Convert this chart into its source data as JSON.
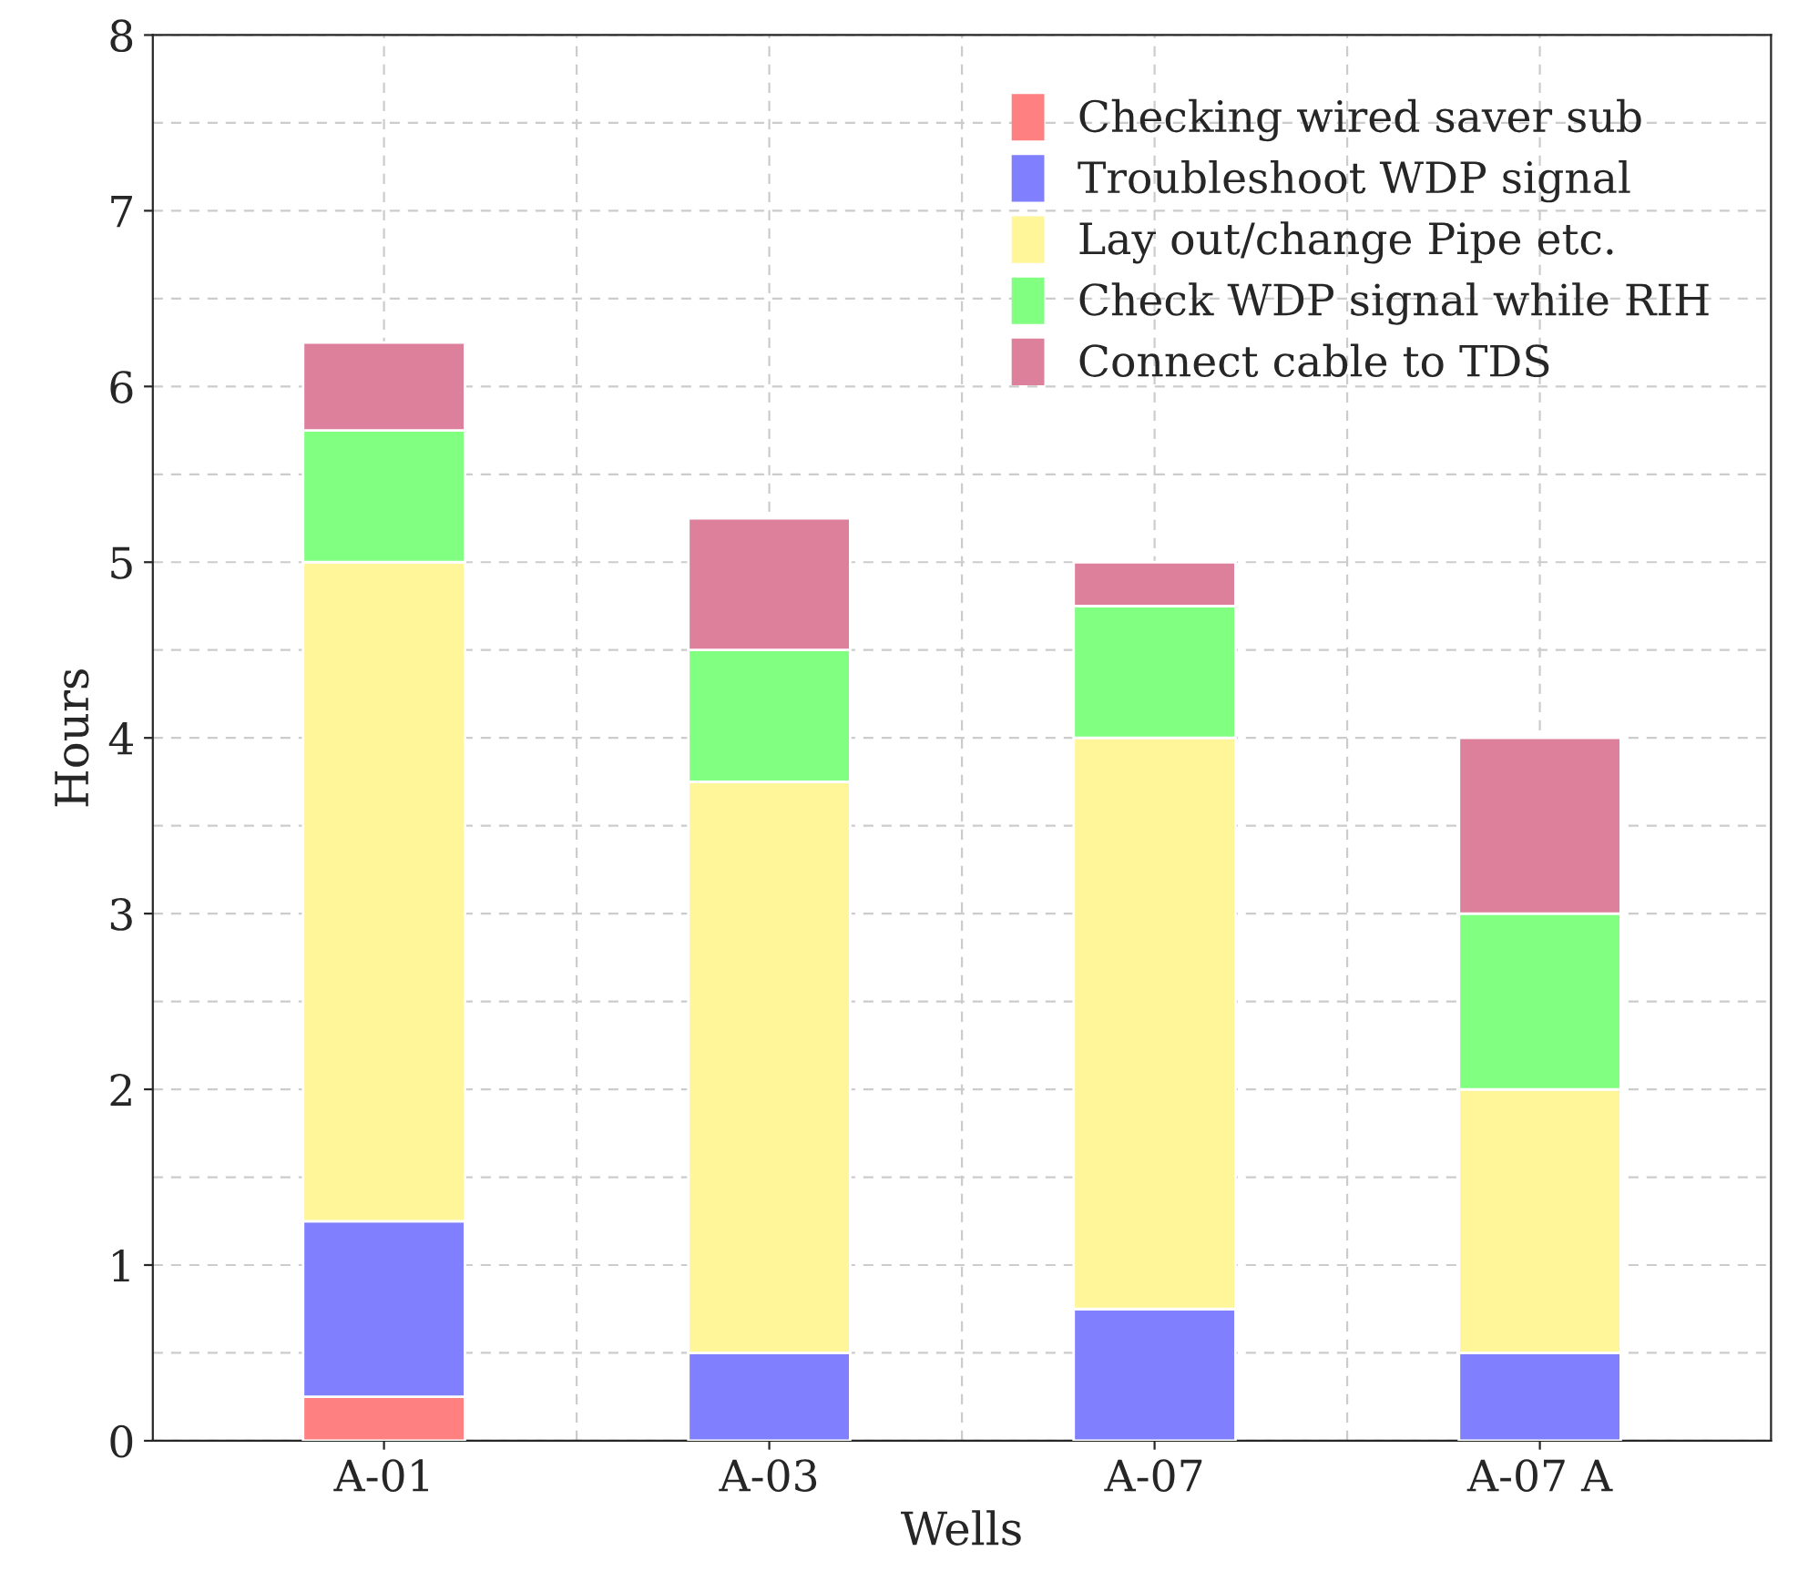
{
  "chart_data": {
    "type": "bar",
    "stacked": true,
    "xlabel": "Wells",
    "ylabel": "Hours",
    "categories": [
      "A-01",
      "A-03",
      "A-07",
      "A-07 A"
    ],
    "series": [
      {
        "name": "Checking wired saver sub",
        "color": "#ff8080",
        "values": [
          0.25,
          0,
          0,
          0
        ]
      },
      {
        "name": "Troubleshoot WDP signal",
        "color": "#8080ff",
        "values": [
          1.0,
          0.5,
          0.75,
          0.5
        ]
      },
      {
        "name": "Lay out/change Pipe etc.",
        "color": "#fff599",
        "values": [
          3.75,
          3.25,
          3.25,
          1.5
        ]
      },
      {
        "name": "Check WDP signal while RIH",
        "color": "#80ff80",
        "values": [
          0.75,
          0.75,
          0.75,
          1.0
        ]
      },
      {
        "name": "Connect cable to TDS",
        "color": "#dd809c",
        "values": [
          0.5,
          0.75,
          0.25,
          1.0
        ]
      }
    ],
    "ylim": [
      0,
      8
    ],
    "yticks": [
      0,
      1,
      2,
      3,
      4,
      5,
      6,
      7,
      8
    ],
    "grid": true,
    "legend": "top right"
  }
}
